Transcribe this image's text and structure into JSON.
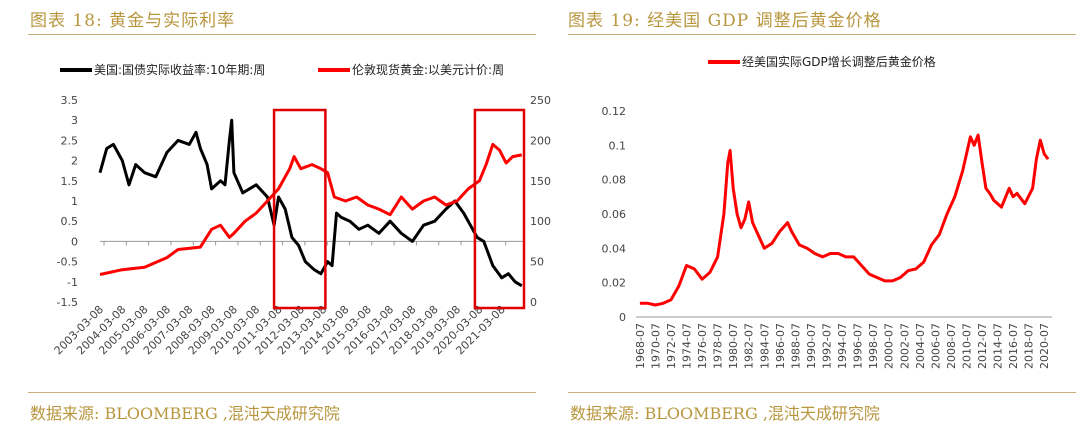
{
  "left": {
    "title": "图表 18: 黄金与实际利率",
    "source": "数据来源: BLOOMBERG ,混沌天成研究院",
    "chart_data": {
      "type": "line",
      "title": "图表 18: 黄金与实际利率",
      "series": [
        {
          "name": "美国:国债实际收益率:10年期:周",
          "axis": "left",
          "color": "#000000",
          "x": [
            2003.0,
            2003.3,
            2003.6,
            2004.0,
            2004.3,
            2004.6,
            2005.0,
            2005.5,
            2006.0,
            2006.5,
            2007.0,
            2007.3,
            2007.5,
            2007.8,
            2008.0,
            2008.4,
            2008.6,
            2008.8,
            2008.9,
            2009.0,
            2009.4,
            2010.0,
            2010.5,
            2010.8,
            2011.0,
            2011.3,
            2011.6,
            2011.9,
            2012.2,
            2012.6,
            2012.9,
            2013.2,
            2013.4,
            2013.6,
            2013.8,
            2014.2,
            2014.6,
            2015.0,
            2015.5,
            2016.0,
            2016.5,
            2017.0,
            2017.5,
            2018.0,
            2018.5,
            2018.9,
            2019.3,
            2019.6,
            2019.9,
            2020.2,
            2020.4,
            2020.6,
            2021.0,
            2021.3,
            2021.6,
            2021.9
          ],
          "values": [
            1.7,
            2.3,
            2.4,
            2.0,
            1.4,
            1.9,
            1.7,
            1.6,
            2.2,
            2.5,
            2.4,
            2.7,
            2.3,
            1.9,
            1.3,
            1.5,
            1.4,
            2.5,
            3.0,
            1.7,
            1.2,
            1.4,
            1.1,
            0.4,
            1.1,
            0.8,
            0.1,
            -0.1,
            -0.5,
            -0.7,
            -0.8,
            -0.5,
            -0.6,
            0.7,
            0.6,
            0.5,
            0.3,
            0.4,
            0.2,
            0.5,
            0.2,
            0.0,
            0.4,
            0.5,
            0.8,
            1.0,
            0.7,
            0.4,
            0.1,
            0.0,
            -0.3,
            -0.6,
            -0.9,
            -0.8,
            -1.0,
            -1.1
          ]
        },
        {
          "name": "伦敦现货黄金:以美元计价:周",
          "axis": "right",
          "color": "#ff0000",
          "x": [
            2003.0,
            2004.0,
            2005.0,
            2006.0,
            2006.5,
            2007.5,
            2008.0,
            2008.4,
            2008.8,
            2009.0,
            2009.5,
            2010.0,
            2010.5,
            2011.0,
            2011.5,
            2011.7,
            2012.0,
            2012.5,
            2012.9,
            2013.2,
            2013.5,
            2014.0,
            2014.5,
            2015.0,
            2015.5,
            2016.0,
            2016.5,
            2017.0,
            2017.5,
            2018.0,
            2018.5,
            2019.0,
            2019.5,
            2020.0,
            2020.3,
            2020.6,
            2020.9,
            2021.2,
            2021.5,
            2021.9
          ],
          "values": [
            34,
            40,
            43,
            55,
            65,
            68,
            90,
            95,
            80,
            85,
            100,
            110,
            125,
            140,
            165,
            180,
            165,
            170,
            165,
            160,
            130,
            125,
            130,
            120,
            115,
            108,
            130,
            115,
            125,
            130,
            120,
            125,
            140,
            150,
            170,
            195,
            188,
            172,
            180,
            182
          ]
        }
      ],
      "x_ticks": [
        "2003-03-08",
        "2004-03-08",
        "2005-03-08",
        "2006-03-08",
        "2007-03-08",
        "2008-03-08",
        "2009-03-08",
        "2010-03-08",
        "2011-03-08",
        "2012-03-08",
        "2013-03-08",
        "2014-03-08",
        "2015-03-08",
        "2016-03-08",
        "2017-03-08",
        "2018-03-08",
        "2019-03-08",
        "2020-03-08",
        "2021-03-08"
      ],
      "y_left_ticks": [
        "3.5",
        "3",
        "2.5",
        "2",
        "1.5",
        "1",
        "0.5",
        "0",
        "-0.5",
        "-1",
        "-1.5"
      ],
      "y_left_range": [
        -1.5,
        3.5
      ],
      "y_right_ticks": [
        "250",
        "200",
        "150",
        "100",
        "50",
        "0"
      ],
      "y_right_range": [
        0,
        250
      ],
      "x_range": [
        2003.0,
        2022.0
      ],
      "highlight_boxes": [
        [
          2010.8,
          2013.1
        ],
        [
          2019.8,
          2022.0
        ]
      ],
      "legend_position": "top"
    }
  },
  "right": {
    "title": "图表 19: 经美国 GDP 调整后黄金价格",
    "source": "数据来源: BLOOMBERG ,混沌天成研究院",
    "chart_data": {
      "type": "line",
      "title": "图表 19: 经美国 GDP 调整后黄金价格",
      "series": [
        {
          "name": "经美国实际GDP增长调整后黄金价格",
          "color": "#ff0000",
          "x": [
            1968.5,
            1969.5,
            1970.5,
            1971.5,
            1972.5,
            1973.5,
            1974.5,
            1975.5,
            1976.5,
            1977.5,
            1978.5,
            1979.3,
            1979.8,
            1980.1,
            1980.5,
            1981.0,
            1981.5,
            1982.0,
            1982.5,
            1983.0,
            1983.5,
            1984.5,
            1985.5,
            1986.5,
            1987.5,
            1988.0,
            1989.0,
            1990.0,
            1991.0,
            1992.0,
            1993.0,
            1994.0,
            1995.0,
            1996.0,
            1997.0,
            1998.0,
            1999.0,
            2000.0,
            2001.0,
            2002.0,
            2003.0,
            2004.0,
            2005.0,
            2006.0,
            2007.0,
            2008.0,
            2009.0,
            2010.0,
            2011.0,
            2011.5,
            2012.0,
            2012.5,
            2013.0,
            2013.5,
            2014.0,
            2015.0,
            2016.0,
            2016.5,
            2017.0,
            2018.0,
            2019.0,
            2019.5,
            2020.0,
            2020.5,
            2021.0
          ],
          "values": [
            0.008,
            0.008,
            0.007,
            0.008,
            0.01,
            0.018,
            0.03,
            0.028,
            0.022,
            0.026,
            0.035,
            0.06,
            0.09,
            0.097,
            0.075,
            0.06,
            0.052,
            0.057,
            0.067,
            0.055,
            0.05,
            0.04,
            0.043,
            0.05,
            0.055,
            0.05,
            0.042,
            0.04,
            0.037,
            0.035,
            0.037,
            0.037,
            0.035,
            0.035,
            0.03,
            0.025,
            0.023,
            0.021,
            0.021,
            0.023,
            0.027,
            0.028,
            0.032,
            0.042,
            0.048,
            0.06,
            0.07,
            0.085,
            0.105,
            0.1,
            0.106,
            0.09,
            0.075,
            0.072,
            0.068,
            0.064,
            0.075,
            0.07,
            0.072,
            0.066,
            0.075,
            0.092,
            0.103,
            0.095,
            0.092
          ]
        }
      ],
      "x_ticks": [
        "1968-07",
        "1970-07",
        "1972-07",
        "1974-07",
        "1976-07",
        "1978-07",
        "1980-07",
        "1982-07",
        "1984-07",
        "1986-07",
        "1988-07",
        "1990-07",
        "1992-07",
        "1994-07",
        "1996-07",
        "1998-07",
        "2000-07",
        "2002-07",
        "2004-07",
        "2006-07",
        "2008-07",
        "2010-07",
        "2012-07",
        "2014-07",
        "2016-07",
        "2018-07",
        "2020-07"
      ],
      "y_ticks": [
        "0.12",
        "0.1",
        "0.08",
        "0.06",
        "0.04",
        "0.02",
        "0"
      ],
      "y_range": [
        0,
        0.12
      ],
      "x_range": [
        1968.0,
        2021.5
      ],
      "legend_position": "top"
    }
  }
}
